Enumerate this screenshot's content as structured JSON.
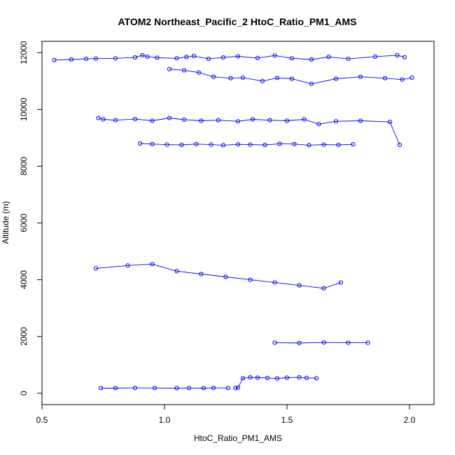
{
  "chart_data": {
    "type": "scatter",
    "title": "ATOM2 Northeast_Pacific_2 HtoC_Ratio_PM1_AMS",
    "xlabel": "HtoC_Ratio_PM1_AMS",
    "ylabel": "Altitude (m)",
    "xlim": [
      0.5,
      2.1
    ],
    "ylim": [
      -400,
      12400
    ],
    "xticks": [
      0.5,
      1.0,
      1.5,
      2.0
    ],
    "xtick_labels": [
      "0.5",
      "1.0",
      "1.5",
      "2.0"
    ],
    "yticks": [
      0,
      2000,
      4000,
      6000,
      8000,
      10000,
      12000
    ],
    "ytick_labels": [
      "0",
      "2000",
      "4000",
      "6000",
      "8000",
      "10000",
      "12000"
    ],
    "grid": false,
    "color": "#0000ff",
    "marker": "open-circle",
    "series": [
      {
        "x": [
          0.55,
          0.62,
          0.68,
          0.72,
          0.8,
          0.88,
          0.91,
          0.93,
          0.97,
          1.05,
          1.09,
          1.12,
          1.18,
          1.24,
          1.3,
          1.38,
          1.45,
          1.52,
          1.6,
          1.67,
          1.75,
          1.86,
          1.95,
          1.98
        ],
        "y": [
          11740,
          11760,
          11780,
          11790,
          11800,
          11830,
          11910,
          11860,
          11820,
          11800,
          11850,
          11880,
          11780,
          11830,
          11870,
          11810,
          11900,
          11800,
          11760,
          11850,
          11780,
          11860,
          11910,
          11840
        ]
      },
      {
        "x": [
          1.02,
          1.08,
          1.14,
          1.2,
          1.27,
          1.32,
          1.4,
          1.46,
          1.52,
          1.6,
          1.7,
          1.8,
          1.9,
          1.97,
          2.01
        ],
        "y": [
          11420,
          11380,
          11300,
          11150,
          11100,
          11120,
          11000,
          11110,
          11080,
          10900,
          11080,
          11150,
          11100,
          11050,
          11120
        ]
      },
      {
        "x": [
          0.73,
          0.75,
          0.8,
          0.88,
          0.95,
          1.02,
          1.08,
          1.15,
          1.22,
          1.3,
          1.36,
          1.43,
          1.5,
          1.57,
          1.63,
          1.7,
          1.8,
          1.92,
          1.96
        ],
        "y": [
          9700,
          9650,
          9620,
          9660,
          9600,
          9700,
          9640,
          9600,
          9620,
          9580,
          9650,
          9620,
          9600,
          9650,
          9480,
          9580,
          9600,
          9560,
          8750
        ]
      },
      {
        "x": [
          0.9,
          0.95,
          1.01,
          1.07,
          1.13,
          1.19,
          1.24,
          1.3,
          1.35,
          1.41,
          1.47,
          1.53,
          1.59,
          1.65,
          1.71,
          1.77
        ],
        "y": [
          8800,
          8780,
          8760,
          8750,
          8780,
          8760,
          8740,
          8770,
          8760,
          8750,
          8790,
          8780,
          8740,
          8760,
          8750,
          8770
        ]
      },
      {
        "x": [
          1.62,
          1.58,
          1.55,
          1.5,
          1.46,
          1.42,
          1.38,
          1.35,
          1.32,
          1.3,
          1.29
        ],
        "y": [
          530,
          540,
          560,
          550,
          520,
          540,
          550,
          560,
          530,
          200,
          180
        ]
      },
      {
        "x": [
          0.74,
          0.8,
          0.88,
          0.96,
          1.05,
          1.1,
          1.16,
          1.2,
          1.26
        ],
        "y": [
          180,
          180,
          190,
          185,
          180,
          185,
          180,
          190,
          185
        ]
      },
      {
        "x": [
          1.45,
          1.55,
          1.65,
          1.75,
          1.83
        ],
        "y": [
          1780,
          1770,
          1790,
          1780,
          1780
        ]
      },
      {
        "x": [
          0.72,
          0.85,
          0.95,
          1.05,
          1.15,
          1.25,
          1.35,
          1.45,
          1.55,
          1.65,
          1.72
        ],
        "y": [
          4400,
          4500,
          4550,
          4300,
          4200,
          4100,
          4000,
          3900,
          3800,
          3700,
          3900
        ]
      }
    ]
  }
}
